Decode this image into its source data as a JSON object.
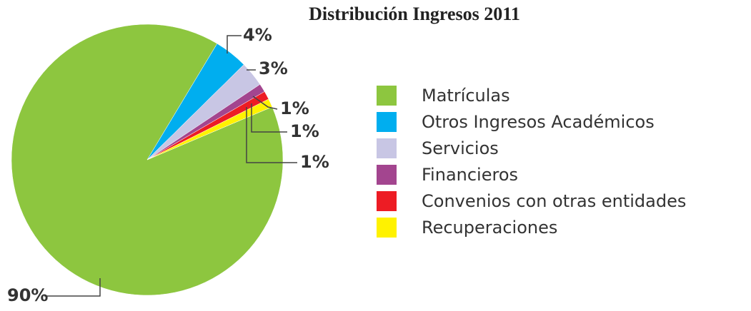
{
  "chart_data": {
    "type": "pie",
    "title": "Distribución Ingresos 2011",
    "categories": [
      "Matrículas",
      "Otros Ingresos Académicos",
      "Servicios",
      "Financieros",
      "Convenios con otras entidades",
      "Recuperaciones"
    ],
    "values": [
      90,
      4,
      3,
      1,
      1,
      1
    ],
    "value_labels": [
      "90%",
      "4%",
      "3%",
      "1%",
      "1%",
      "1%"
    ],
    "colors": [
      "#8dc63f",
      "#00aeef",
      "#c8c6e4",
      "#a3458f",
      "#ed1c24",
      "#fff200"
    ]
  }
}
